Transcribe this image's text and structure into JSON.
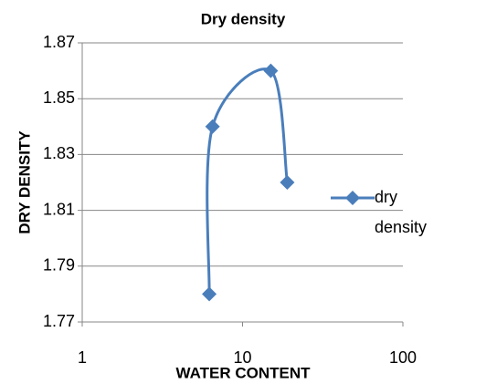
{
  "chart_data": {
    "type": "line",
    "title": "Dry density",
    "x_label": "WATER CONTENT",
    "y_label": "DRY DENSITY",
    "x": [
      6.2,
      6.5,
      15,
      19
    ],
    "series": [
      {
        "name": "dry density",
        "color": "#4a7ebb",
        "values": [
          1.78,
          1.84,
          1.86,
          1.82
        ]
      }
    ],
    "xlim": [
      1,
      100
    ],
    "xticks": [
      1,
      10,
      100
    ],
    "xscale": "log",
    "ylim": [
      1.77,
      1.87
    ],
    "yticks": [
      1.77,
      1.79,
      1.81,
      1.83,
      1.85,
      1.87
    ],
    "grid": true,
    "smooth": true,
    "legend": "right"
  }
}
